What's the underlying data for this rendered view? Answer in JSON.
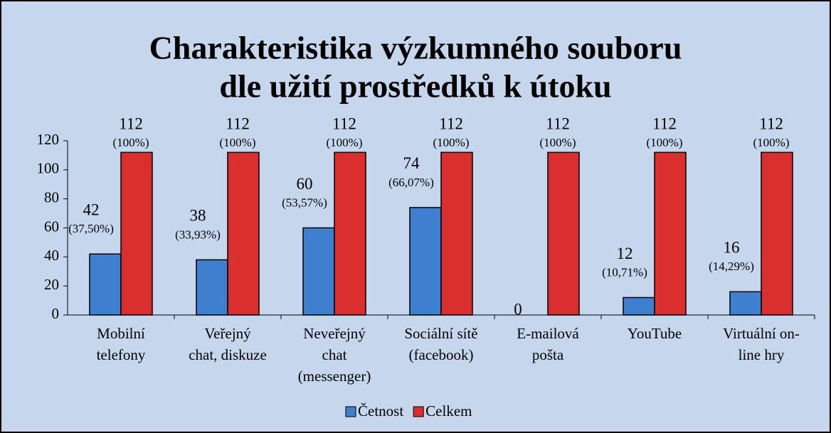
{
  "chart_data": {
    "type": "bar",
    "title": [
      "Charakteristika výzkumného souboru",
      "dle užití prostředků k útoku"
    ],
    "categories": [
      [
        "Mobilní",
        "telefony"
      ],
      [
        "Veřejný",
        "chat, diskuze"
      ],
      [
        "Neveřejný",
        "chat",
        "(messenger)"
      ],
      [
        "Sociální sítě",
        "(facebook)"
      ],
      [
        "E-mailová",
        "pošta"
      ],
      [
        "YouTube"
      ],
      [
        "Virtuální on-",
        "line hry"
      ]
    ],
    "series": [
      {
        "name": "Četnost",
        "color": "#3f7fd0",
        "values": [
          42,
          38,
          60,
          74,
          0,
          12,
          16
        ],
        "percentages": [
          37.5,
          33.93,
          53.57,
          66.07,
          null,
          10.71,
          14.29
        ],
        "percentage_labels": [
          "(37,50%)",
          "(33,93%)",
          "(53,57%)",
          "(66,07%)",
          null,
          "(10,71%)",
          "(14,29%)"
        ]
      },
      {
        "name": "Celkem",
        "color": "#d92f2f",
        "values": [
          112,
          112,
          112,
          112,
          112,
          112,
          112
        ],
        "percentages": [
          100,
          100,
          100,
          100,
          100,
          100,
          100
        ],
        "percentage_labels": [
          "(100%)",
          "(100%)",
          "(100%)",
          "(100%)",
          "(100%)",
          "(100%)",
          "(100%)"
        ]
      }
    ],
    "ylim": [
      0,
      120
    ],
    "yticks": [
      0,
      20,
      40,
      60,
      80,
      100,
      120
    ],
    "grid": false,
    "legend": "bottom"
  }
}
